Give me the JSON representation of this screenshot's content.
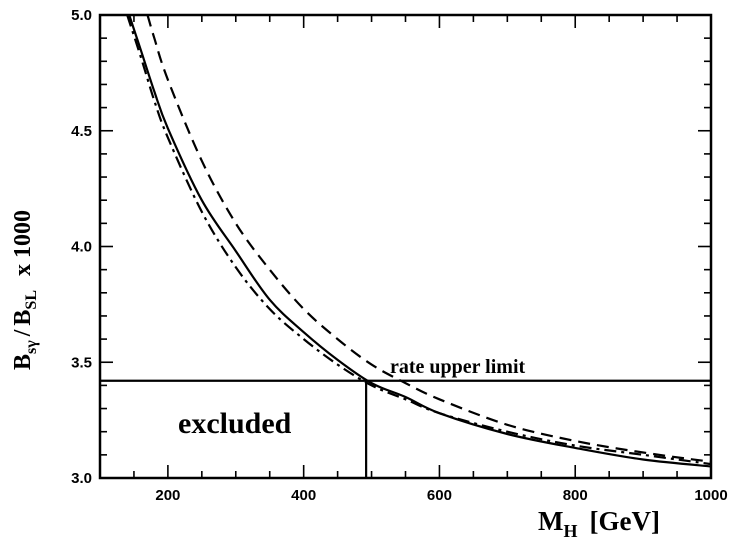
{
  "chart_data": {
    "type": "line",
    "xlabel_main": "M",
    "xlabel_sub": "H",
    "xlabel_unit": "[GeV]",
    "ylabel_b1": "B",
    "ylabel_b1_sub": "sγ",
    "ylabel_sep": "/",
    "ylabel_b2": "B",
    "ylabel_b2_sub": "SL",
    "ylabel_factor": "x 1000",
    "xlim": [
      100,
      1000
    ],
    "ylim": [
      3.0,
      5.0
    ],
    "x_major_ticks": [
      200,
      400,
      600,
      800,
      1000
    ],
    "x_tick_labels": [
      "200",
      "400",
      "600",
      "800",
      "1000"
    ],
    "x_minor_step": 50,
    "y_major_ticks": [
      3.0,
      3.5,
      4.0,
      4.5,
      5.0
    ],
    "y_tick_labels": [
      "3.0",
      "3.5",
      "4.0",
      "4.5",
      "5.0"
    ],
    "y_minor_step": 0.1,
    "series": [
      {
        "style": "solid",
        "x": [
          143,
          160,
          180,
          200,
          250,
          300,
          350,
          400,
          450,
          500,
          550,
          600,
          700,
          800,
          900,
          1000
        ],
        "y": [
          5.0,
          4.85,
          4.67,
          4.51,
          4.2,
          3.98,
          3.77,
          3.63,
          3.51,
          3.41,
          3.35,
          3.28,
          3.19,
          3.13,
          3.08,
          3.05
        ]
      },
      {
        "style": "dashed",
        "x": [
          170,
          180,
          200,
          250,
          300,
          350,
          400,
          450,
          500,
          550,
          600,
          700,
          800,
          900,
          1000
        ],
        "y": [
          5.0,
          4.9,
          4.72,
          4.37,
          4.1,
          3.9,
          3.73,
          3.6,
          3.49,
          3.41,
          3.34,
          3.23,
          3.16,
          3.11,
          3.07
        ]
      },
      {
        "style": "dashdot",
        "x": [
          140,
          160,
          180,
          200,
          250,
          300,
          350,
          400,
          450,
          500,
          550,
          600,
          700,
          800,
          900,
          1000
        ],
        "y": [
          5.0,
          4.82,
          4.63,
          4.47,
          4.15,
          3.91,
          3.73,
          3.6,
          3.49,
          3.4,
          3.34,
          3.28,
          3.2,
          3.14,
          3.1,
          3.06
        ]
      }
    ],
    "limit_line": {
      "y": 3.42,
      "label": "rate upper limit"
    },
    "exclusion_line": {
      "x": 492
    },
    "excluded_label": "excluded",
    "grid": false
  }
}
